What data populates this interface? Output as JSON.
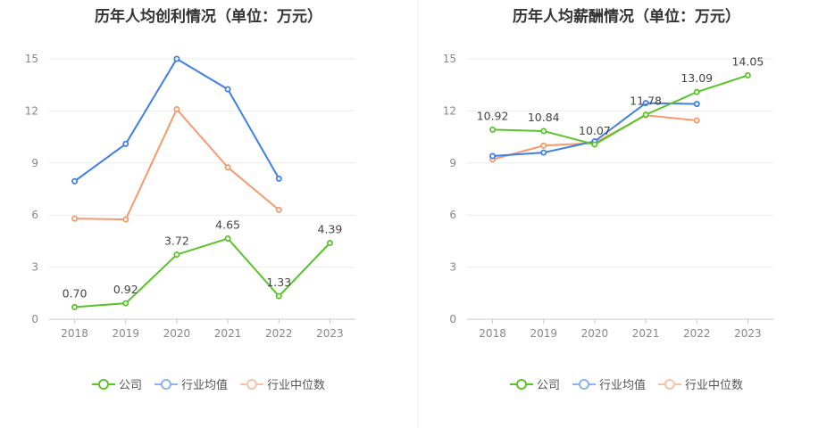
{
  "charts": [
    {
      "title": "历年人均创利情况（单位：万元）",
      "chart_data": {
        "type": "line",
        "title": "历年人均创利情况（单位：万元）",
        "categories": [
          "2018",
          "2019",
          "2020",
          "2021",
          "2022",
          "2023"
        ],
        "ylim": [
          0,
          15
        ],
        "yticks": [
          "0",
          "3",
          "6",
          "9",
          "12",
          "15"
        ],
        "grid": true,
        "legend_position": "bottom",
        "series": [
          {
            "name": "公司",
            "color": "#5cc42b",
            "values": [
              0.7,
              0.92,
              3.72,
              4.65,
              1.33,
              4.39
            ],
            "labels": [
              "0.70",
              "0.92",
              "3.72",
              "4.65",
              "1.33",
              "4.39"
            ]
          },
          {
            "name": "行业均值",
            "color": "#3f7fe6",
            "values": [
              7.95,
              10.1,
              15.0,
              13.25,
              8.1,
              null
            ],
            "labels": []
          },
          {
            "name": "行业中位数",
            "color": "#f59a6e",
            "values": [
              5.8,
              5.75,
              12.1,
              8.75,
              6.3,
              null
            ],
            "labels": []
          }
        ]
      }
    },
    {
      "title": "历年人均薪酬情况（单位：万元）",
      "chart_data": {
        "type": "line",
        "title": "历年人均薪酬情况（单位：万元）",
        "categories": [
          "2018",
          "2019",
          "2020",
          "2021",
          "2022",
          "2023"
        ],
        "ylim": [
          0,
          15
        ],
        "yticks": [
          "0",
          "3",
          "6",
          "9",
          "12",
          "15"
        ],
        "grid": true,
        "legend_position": "bottom",
        "series": [
          {
            "name": "公司",
            "color": "#5cc42b",
            "values": [
              10.92,
              10.84,
              10.07,
              11.78,
              13.09,
              14.05
            ],
            "labels": [
              "10.92",
              "10.84",
              "10.07",
              "11.78",
              "13.09",
              "14.05"
            ]
          },
          {
            "name": "行业均值",
            "color": "#3f7fe6",
            "values": [
              9.4,
              9.6,
              10.25,
              12.45,
              12.4,
              null
            ],
            "labels": []
          },
          {
            "name": "行业中位数",
            "color": "#f59a6e",
            "values": [
              9.2,
              10.0,
              10.15,
              11.75,
              11.45,
              null
            ],
            "labels": []
          }
        ]
      }
    }
  ]
}
